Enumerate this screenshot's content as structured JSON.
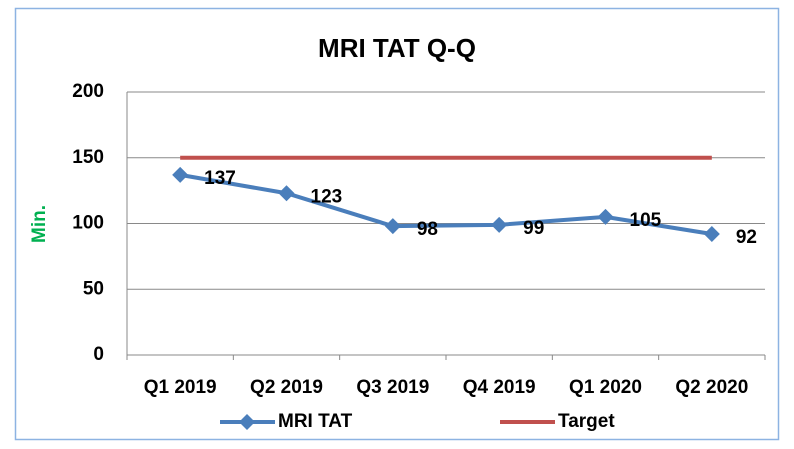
{
  "chart_data": {
    "type": "line",
    "title": "MRI TAT Q-Q",
    "y_label": "Min.",
    "categories": [
      "Q1 2019",
      "Q2 2019",
      "Q3 2019",
      "Q4 2019",
      "Q1 2020",
      "Q2 2020"
    ],
    "series": [
      {
        "name": "MRI TAT",
        "color": "#4a7ebb",
        "values": [
          137,
          123,
          98,
          99,
          105,
          92
        ],
        "marker": "diamond",
        "data_labels": true
      },
      {
        "name": "Target",
        "color": "#c0504d",
        "values": [
          150,
          150,
          150,
          150,
          150,
          150
        ]
      }
    ],
    "ylim": [
      0,
      200
    ],
    "yticks": [
      0,
      50,
      100,
      150,
      200
    ],
    "grid": true,
    "legend": "bottom"
  }
}
